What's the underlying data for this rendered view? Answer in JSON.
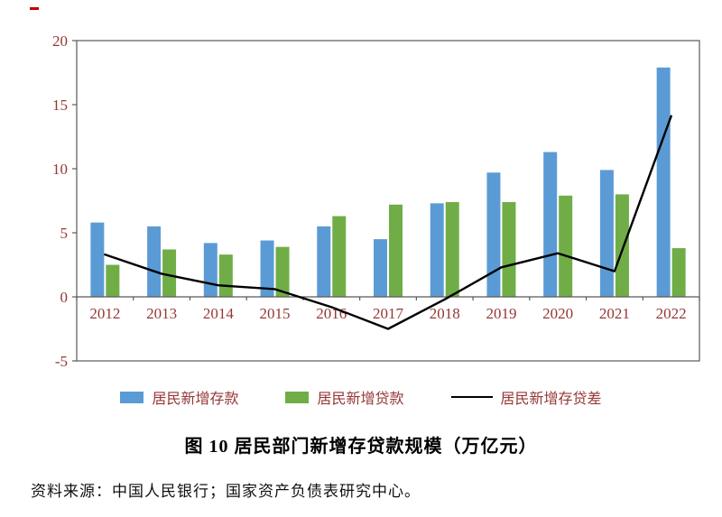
{
  "title": "图 10 居民部门新增存贷款规模（万亿元）",
  "source": "资料来源：中国人民银行；国家资产负债表研究中心。",
  "colors": {
    "deposit_bar": "#5B9BD5",
    "loan_bar": "#70AD47",
    "diff_line": "#000000",
    "axis_text": "#953735",
    "axis_line": "#595959"
  },
  "chart_data": {
    "type": "bar+line",
    "title": "图 10 居民部门新增存贷款规模（万亿元）",
    "categories": [
      "2012",
      "2013",
      "2014",
      "2015",
      "2016",
      "2017",
      "2018",
      "2019",
      "2020",
      "2021",
      "2022"
    ],
    "series": [
      {
        "name": "居民新增存款",
        "type": "bar",
        "color_key": "deposit_bar",
        "values": [
          5.8,
          5.5,
          4.2,
          4.4,
          5.5,
          4.5,
          7.3,
          9.7,
          11.3,
          9.9,
          17.9
        ]
      },
      {
        "name": "居民新增贷款",
        "type": "bar",
        "color_key": "loan_bar",
        "values": [
          2.5,
          3.7,
          3.3,
          3.9,
          6.3,
          7.2,
          7.4,
          7.4,
          7.9,
          8.0,
          3.8
        ]
      },
      {
        "name": "居民新增存贷差",
        "type": "line",
        "color_key": "diff_line",
        "values": [
          3.3,
          1.8,
          0.9,
          0.6,
          -0.8,
          -2.5,
          -0.2,
          2.3,
          3.4,
          2.0,
          14.1
        ]
      }
    ],
    "xlabel": "",
    "ylabel": "",
    "ylim": [
      -5,
      20
    ],
    "yticks": [
      20,
      15,
      10,
      5,
      0,
      -5
    ],
    "grid": false,
    "legend_position": "bottom"
  }
}
